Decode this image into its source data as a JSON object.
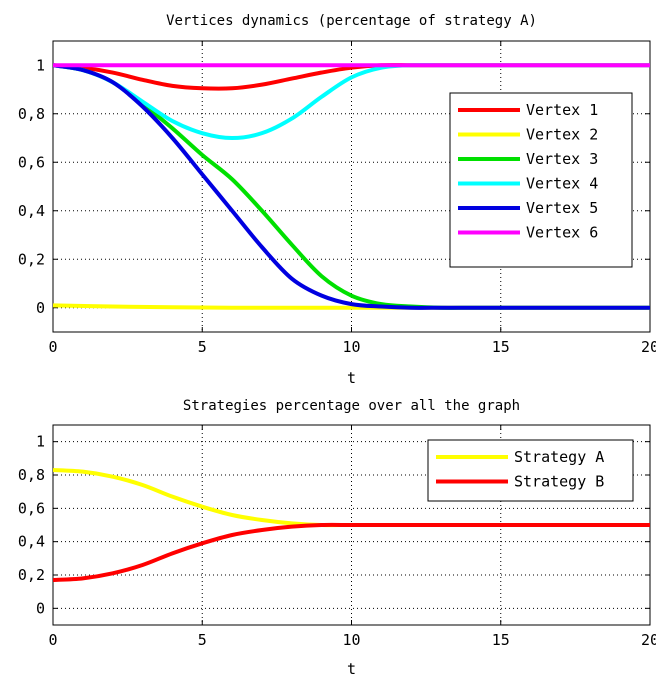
{
  "chart_data": [
    {
      "type": "line",
      "title": "Vertices dynamics (percentage of strategy A)",
      "xlabel": "t",
      "ylabel": "",
      "xlim": [
        0,
        20
      ],
      "ylim": [
        -0.1,
        1.1
      ],
      "xticks": [
        0,
        5,
        10,
        15,
        20
      ],
      "yticks": [
        0,
        0.2,
        0.4,
        0.6,
        0.8,
        1
      ],
      "xtick_labels": [
        "0",
        "5",
        "10",
        "15",
        "20"
      ],
      "ytick_labels": [
        "0",
        "0,2",
        "0,4",
        "0,6",
        "0,8",
        "1"
      ],
      "grid": true,
      "legend_position": "right",
      "series": [
        {
          "name": "Vertex 1",
          "color": "#ff0000",
          "x": [
            0,
            1,
            2,
            3,
            4,
            5,
            6,
            7,
            8,
            9,
            10,
            11,
            12,
            13,
            14,
            15,
            16,
            17,
            18,
            19,
            20
          ],
          "y": [
            1,
            0.99,
            0.97,
            0.94,
            0.915,
            0.905,
            0.905,
            0.92,
            0.945,
            0.97,
            0.99,
            1,
            1,
            1,
            1,
            1,
            1,
            1,
            1,
            1,
            1
          ]
        },
        {
          "name": "Vertex 2",
          "color": "#ffff00",
          "x": [
            0,
            2,
            4,
            6,
            8,
            10,
            12,
            14,
            16,
            18,
            20
          ],
          "y": [
            0.01,
            0.005,
            0.002,
            0,
            0,
            0,
            0,
            0,
            0,
            0,
            0
          ]
        },
        {
          "name": "Vertex 3",
          "color": "#00e000",
          "x": [
            0,
            1,
            2,
            3,
            4,
            5,
            6,
            7,
            8,
            9,
            10,
            11,
            12,
            13,
            14,
            15,
            16,
            17,
            18,
            19,
            20
          ],
          "y": [
            1,
            0.98,
            0.93,
            0.84,
            0.74,
            0.63,
            0.53,
            0.4,
            0.26,
            0.13,
            0.05,
            0.015,
            0.005,
            0,
            0,
            0,
            0,
            0,
            0,
            0,
            0
          ]
        },
        {
          "name": "Vertex 4",
          "color": "#00ffff",
          "x": [
            0,
            1,
            2,
            3,
            4,
            5,
            6,
            7,
            8,
            9,
            10,
            11,
            12,
            13,
            14,
            15,
            16,
            17,
            18,
            19,
            20
          ],
          "y": [
            1,
            0.98,
            0.93,
            0.85,
            0.77,
            0.72,
            0.7,
            0.72,
            0.78,
            0.87,
            0.95,
            0.99,
            1,
            1,
            1,
            1,
            1,
            1,
            1,
            1,
            1
          ]
        },
        {
          "name": "Vertex 5",
          "color": "#0000e0",
          "x": [
            0,
            1,
            2,
            3,
            4,
            5,
            6,
            7,
            8,
            9,
            10,
            11,
            12,
            13,
            14,
            15,
            16,
            17,
            18,
            19,
            20
          ],
          "y": [
            1,
            0.98,
            0.93,
            0.83,
            0.7,
            0.55,
            0.4,
            0.25,
            0.12,
            0.05,
            0.015,
            0.005,
            0,
            0,
            0,
            0,
            0,
            0,
            0,
            0,
            0
          ]
        },
        {
          "name": "Vertex 6",
          "color": "#ff00ff",
          "x": [
            0,
            20
          ],
          "y": [
            1,
            1
          ]
        }
      ]
    },
    {
      "type": "line",
      "title": "Strategies percentage over all the graph",
      "xlabel": "t",
      "ylabel": "",
      "xlim": [
        0,
        20
      ],
      "ylim": [
        -0.1,
        1.1
      ],
      "xticks": [
        0,
        5,
        10,
        15,
        20
      ],
      "yticks": [
        0,
        0.2,
        0.4,
        0.6,
        0.8,
        1
      ],
      "xtick_labels": [
        "0",
        "5",
        "10",
        "15",
        "20"
      ],
      "ytick_labels": [
        "0",
        "0,2",
        "0,4",
        "0,6",
        "0,8",
        "1"
      ],
      "grid": true,
      "legend_position": "top-right",
      "series": [
        {
          "name": "Strategy A",
          "color": "#ffff00",
          "x": [
            0,
            1,
            2,
            3,
            4,
            5,
            6,
            7,
            8,
            9,
            10,
            11,
            12,
            13,
            14,
            15,
            16,
            17,
            18,
            19,
            20
          ],
          "y": [
            0.83,
            0.82,
            0.79,
            0.74,
            0.67,
            0.61,
            0.56,
            0.53,
            0.51,
            0.5,
            0.5,
            0.5,
            0.5,
            0.5,
            0.5,
            0.5,
            0.5,
            0.5,
            0.5,
            0.5,
            0.5
          ]
        },
        {
          "name": "Strategy B",
          "color": "#ff0000",
          "x": [
            0,
            1,
            2,
            3,
            4,
            5,
            6,
            7,
            8,
            9,
            10,
            11,
            12,
            13,
            14,
            15,
            16,
            17,
            18,
            19,
            20
          ],
          "y": [
            0.17,
            0.18,
            0.21,
            0.26,
            0.33,
            0.39,
            0.44,
            0.47,
            0.49,
            0.5,
            0.5,
            0.5,
            0.5,
            0.5,
            0.5,
            0.5,
            0.5,
            0.5,
            0.5,
            0.5,
            0.5
          ]
        }
      ]
    }
  ]
}
